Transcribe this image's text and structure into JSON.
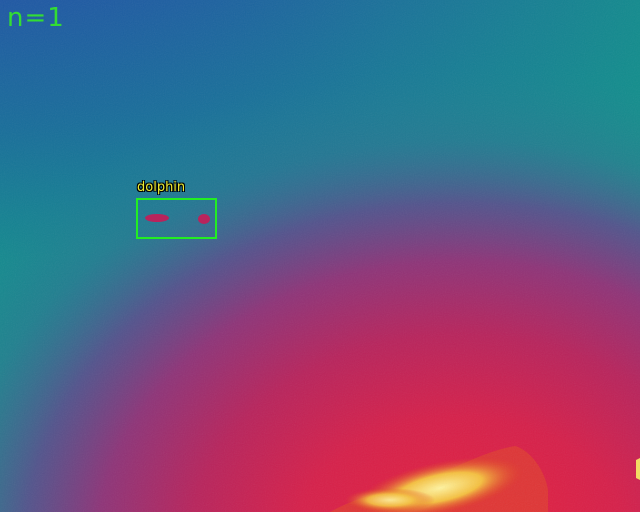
{
  "overlay": {
    "count_text": "n=1",
    "count_color": "#33dd33"
  },
  "detections": [
    {
      "label": "dolphin",
      "box_color": "#22ee22",
      "label_color": "#eeee33"
    }
  ],
  "palette": {
    "cold": "#1f5fa0",
    "cool": "#15868e",
    "mid": "#7a3a8e",
    "warm": "#c8204a",
    "hot": "#f5dd60"
  }
}
